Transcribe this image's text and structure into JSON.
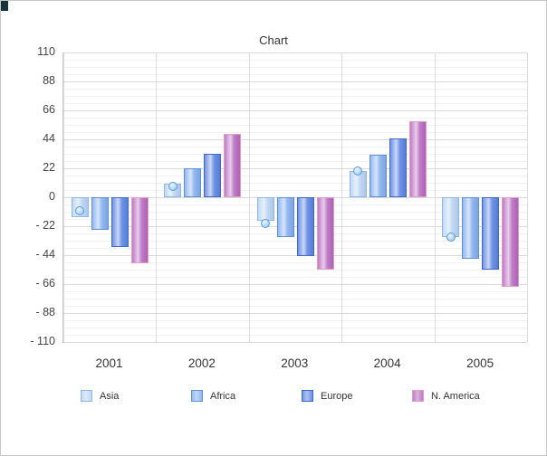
{
  "window": {
    "background": "#ffffff",
    "border_color": "#c6c6c6",
    "corner_accent_color": "#16343a"
  },
  "chart_data": {
    "type": "bar",
    "title": "Chart",
    "categories": [
      "2001",
      "2002",
      "2003",
      "2004",
      "2005"
    ],
    "series": [
      {
        "name": "Asia",
        "fill": "#b9d3f3",
        "border": "#8fb6e8",
        "values": [
          -15,
          10,
          -18,
          20,
          -30
        ]
      },
      {
        "name": "Africa",
        "fill": "#84aeee",
        "border": "#5e8fdb",
        "values": [
          -25,
          22,
          -30,
          32,
          -47
        ]
      },
      {
        "name": "Europe",
        "fill": "#5b84e2",
        "border": "#3f69c9",
        "values": [
          -38,
          33,
          -45,
          45,
          -55
        ]
      },
      {
        "name": "N. America",
        "fill": "#b669c0",
        "border": "#e39cc0",
        "values": [
          -50,
          48,
          -55,
          58,
          -68
        ]
      }
    ],
    "asia_point_markers": [
      -10,
      8,
      -20,
      20,
      -30
    ],
    "marker_fill": "#8fc3f2",
    "marker_border": "#5a9bd8",
    "y_axis": {
      "min": -110,
      "max": 110,
      "tick_step": 22,
      "tick_labels": [
        "110",
        "88",
        "66",
        "44",
        "22",
        "0",
        "- 22",
        "- 44",
        "- 66",
        "- 88",
        "- 110"
      ]
    },
    "grid": {
      "major_horizontal": true,
      "minor_horizontal": true,
      "vertical_category_separators": true
    },
    "legend_position": "bottom"
  }
}
